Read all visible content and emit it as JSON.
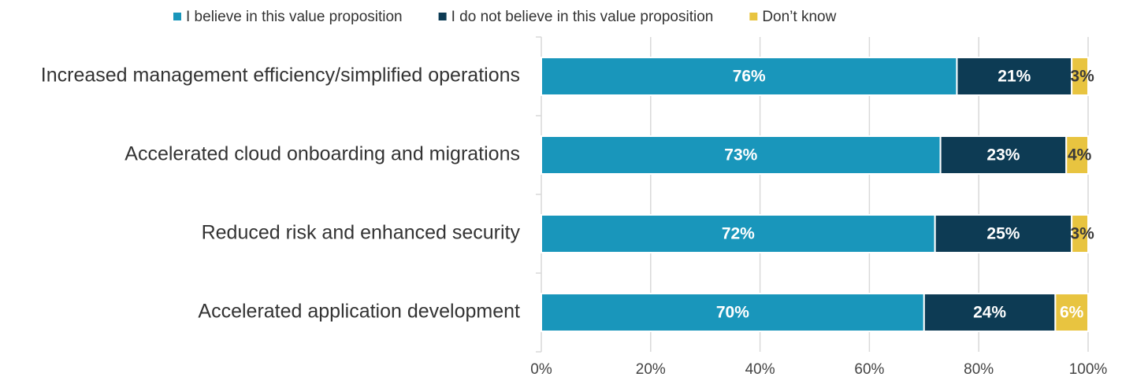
{
  "chart_data": {
    "type": "stacked_barh",
    "categories": [
      "Increased management efficiency/simplified operations",
      "Accelerated cloud onboarding and migrations",
      "Reduced risk and enhanced security",
      "Accelerated application development"
    ],
    "series": [
      {
        "name": "I believe in this value proposition",
        "color": "#1996bb",
        "values": [
          76,
          73,
          72,
          70
        ],
        "value_labels": [
          "76%",
          "73%",
          "72%",
          "70%"
        ]
      },
      {
        "name": "I do not believe in this value proposition",
        "color": "#0d3b54",
        "values": [
          21,
          23,
          25,
          24
        ],
        "value_labels": [
          "21%",
          "23%",
          "25%",
          "24%"
        ]
      },
      {
        "name": "Don’t know",
        "color": "#e8c440",
        "values": [
          3,
          4,
          3,
          6
        ],
        "value_labels": [
          "3%",
          "4%",
          "3%",
          "6%"
        ]
      }
    ],
    "xlim": [
      0,
      100
    ],
    "xticks": [
      {
        "value": 0,
        "label": "0%"
      },
      {
        "value": 20,
        "label": "20%"
      },
      {
        "value": 40,
        "label": "40%"
      },
      {
        "value": 60,
        "label": "60%"
      },
      {
        "value": 80,
        "label": "80%"
      },
      {
        "value": 100,
        "label": "100%"
      }
    ],
    "grid": true,
    "legend": "top"
  }
}
